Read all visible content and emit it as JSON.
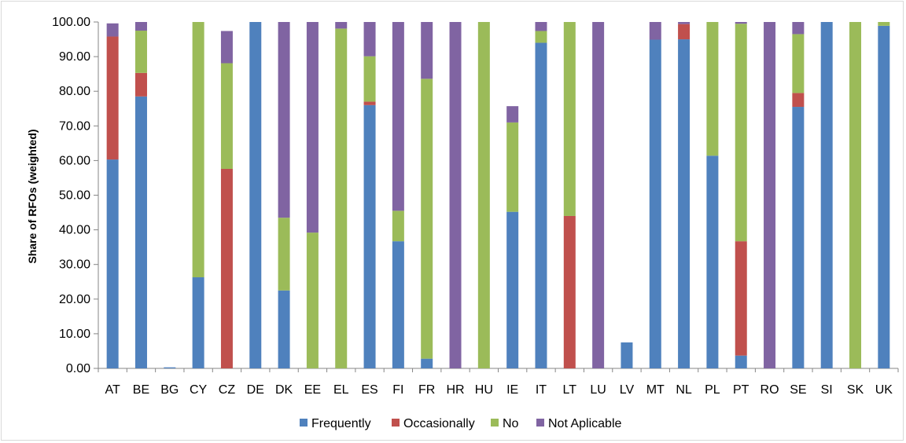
{
  "chart_data": {
    "type": "bar",
    "stacked": true,
    "title": "",
    "xlabel": "",
    "ylabel": "Share of RFOs (weighted)",
    "ylim": [
      0,
      100
    ],
    "yticks": [
      "0.00",
      "10.00",
      "20.00",
      "30.00",
      "40.00",
      "50.00",
      "60.00",
      "70.00",
      "80.00",
      "90.00",
      "100.00"
    ],
    "grid": false,
    "legend_position": "bottom",
    "categories": [
      "AT",
      "BE",
      "BG",
      "CY",
      "CZ",
      "DE",
      "DK",
      "EE",
      "EL",
      "ES",
      "FI",
      "FR",
      "HR",
      "HU",
      "IE",
      "IT",
      "LT",
      "LU",
      "LV",
      "MT",
      "NL",
      "PL",
      "PT",
      "RO",
      "SE",
      "SI",
      "SK",
      "UK"
    ],
    "series": [
      {
        "name": "Frequently",
        "color": "#4f81bd",
        "values": [
          60.3,
          78.5,
          0.3,
          26.3,
          0,
          100,
          22.5,
          0,
          0,
          76.0,
          36.7,
          2.8,
          0,
          0,
          45.2,
          94.0,
          0,
          0,
          7.5,
          94.9,
          95.0,
          61.4,
          3.7,
          0,
          75.5,
          100,
          0,
          98.9
        ]
      },
      {
        "name": "Occasionally",
        "color": "#c0504d",
        "values": [
          35.5,
          6.8,
          0,
          0,
          57.6,
          0,
          0,
          0,
          0,
          1.0,
          0,
          0,
          0,
          0,
          0,
          0,
          44.0,
          0,
          0,
          0,
          4.4,
          0,
          33.0,
          0,
          4.0,
          0,
          0,
          0
        ]
      },
      {
        "name": "No",
        "color": "#9bbb59",
        "values": [
          0,
          12.2,
          0,
          73.7,
          30.5,
          0,
          21.0,
          39.2,
          98.1,
          13.1,
          8.8,
          80.8,
          0,
          100,
          25.8,
          3.4,
          56.0,
          0,
          0,
          0,
          0,
          38.6,
          62.8,
          0,
          17.0,
          0,
          100,
          1.1
        ]
      },
      {
        "name": "Not Aplicable",
        "color": "#8064a2",
        "values": [
          3.8,
          2.5,
          0,
          0,
          9.3,
          0,
          56.5,
          60.8,
          1.9,
          9.9,
          54.5,
          16.4,
          100,
          0,
          4.7,
          2.6,
          0,
          100,
          0,
          5.1,
          0.6,
          0,
          0.5,
          100,
          3.5,
          0,
          0,
          0
        ]
      }
    ]
  }
}
